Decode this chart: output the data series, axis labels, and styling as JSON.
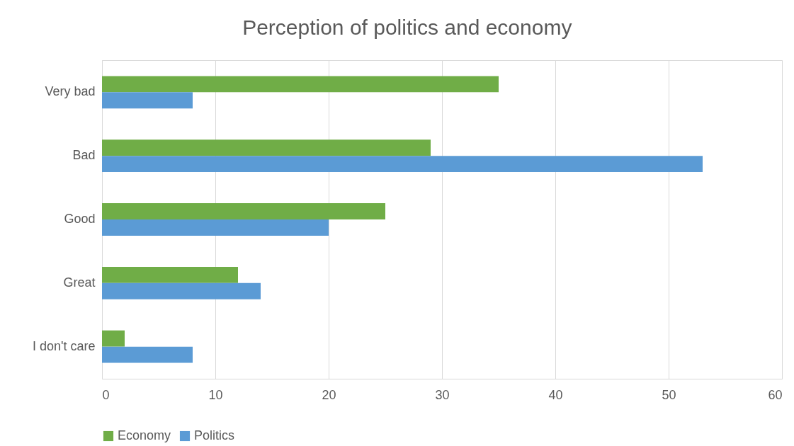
{
  "chart_data": {
    "type": "bar",
    "orientation": "horizontal",
    "title": "Perception of politics and economy",
    "categories": [
      "Very bad",
      "Bad",
      "Good",
      "Great",
      "I don't care"
    ],
    "series": [
      {
        "name": "Economy",
        "color": "#70ad47",
        "values": [
          35,
          29,
          25,
          12,
          2
        ]
      },
      {
        "name": "Politics",
        "color": "#5b9bd5",
        "values": [
          8,
          53,
          20,
          14,
          8
        ]
      }
    ],
    "xlim": [
      0,
      60
    ],
    "xticks": [
      0,
      10,
      20,
      30,
      40,
      50,
      60
    ],
    "grid": "x",
    "legend": "bottom"
  }
}
